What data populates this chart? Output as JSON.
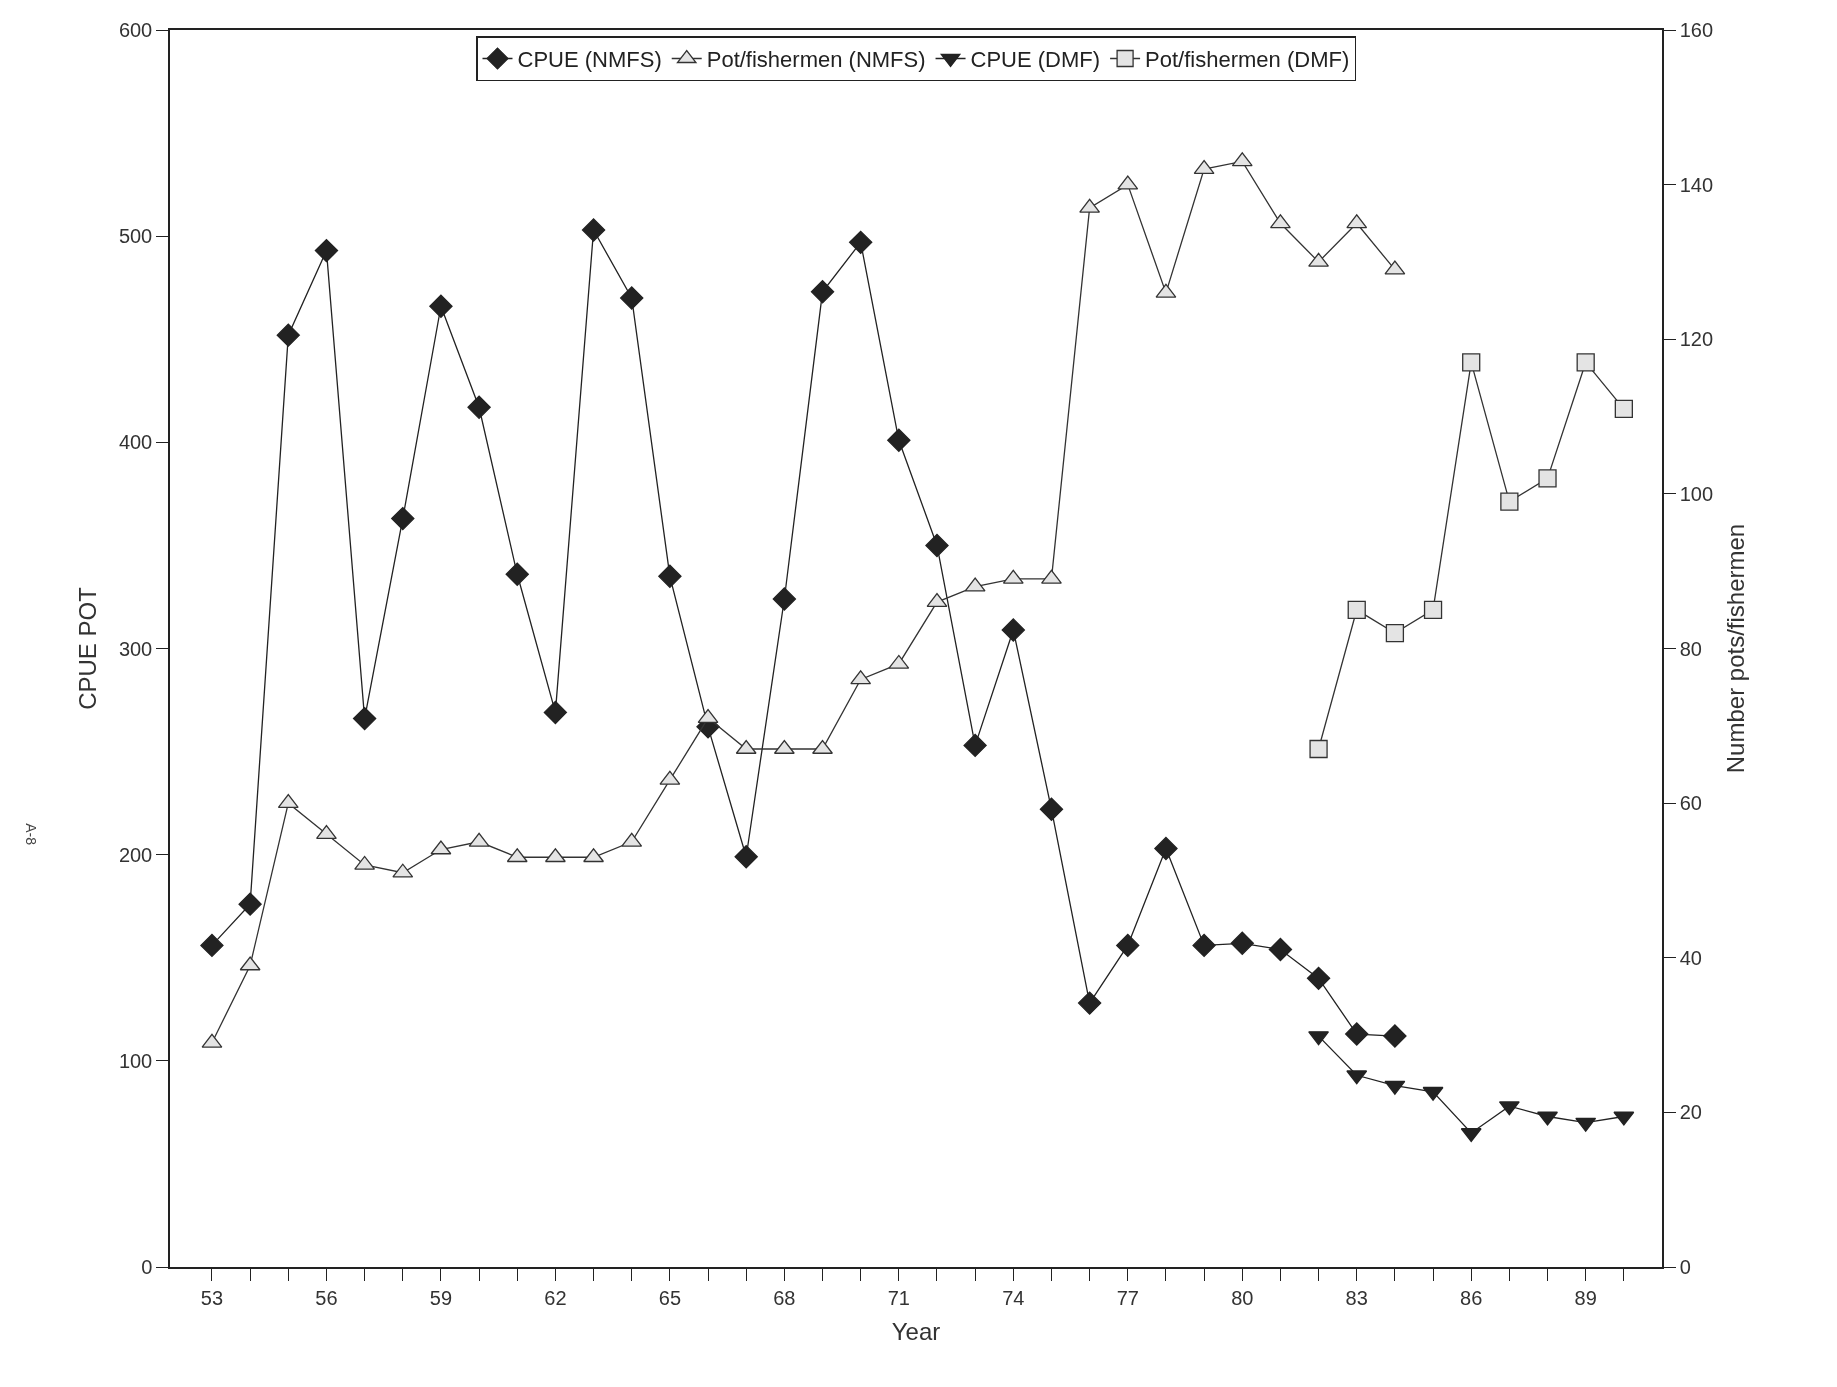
{
  "chart_data": {
    "type": "line",
    "xlabel": "Year",
    "ylabel": "CPUE POT",
    "y2label": "Number pots/fishermen",
    "annotations": [
      "A-8"
    ],
    "xlim": [
      51.9,
      91
    ],
    "xticks": [
      53,
      {
        "value": 54,
        "label": null
      },
      {
        "value": 55,
        "label": null
      },
      56,
      {
        "value": 57,
        "label": null
      },
      {
        "value": 58,
        "label": null
      },
      59,
      {
        "value": 60,
        "label": null
      },
      {
        "value": 61,
        "label": null
      },
      62,
      {
        "value": 63,
        "label": null
      },
      {
        "value": 64,
        "label": null
      },
      65,
      {
        "value": 66,
        "label": null
      },
      {
        "value": 67,
        "label": null
      },
      68,
      {
        "value": 69,
        "label": null
      },
      {
        "value": 70,
        "label": null
      },
      71,
      {
        "value": 72,
        "label": null
      },
      {
        "value": 73,
        "label": null
      },
      74,
      {
        "value": 75,
        "label": null
      },
      {
        "value": 76,
        "label": null
      },
      77,
      {
        "value": 78,
        "label": null
      },
      {
        "value": 79,
        "label": null
      },
      80,
      {
        "value": 81,
        "label": null
      },
      {
        "value": 82,
        "label": null
      },
      83,
      {
        "value": 84,
        "label": null
      },
      {
        "value": 85,
        "label": null
      },
      86,
      {
        "value": 87,
        "label": null
      },
      {
        "value": 88,
        "label": null
      },
      89,
      {
        "value": 90,
        "label": null
      }
    ],
    "ylim": [
      0,
      600
    ],
    "yticks": [
      0,
      100,
      200,
      300,
      400,
      500,
      600
    ],
    "y2lim": [
      0,
      160
    ],
    "y2ticks": [
      0,
      20,
      40,
      60,
      80,
      100,
      120,
      140,
      160
    ],
    "legend": "top",
    "series": [
      {
        "name": "CPUE (NMFS)",
        "color": "#222222",
        "marker": "diamond",
        "x": [
          53,
          54,
          55,
          56,
          57,
          58,
          59,
          60,
          61,
          62,
          63,
          64,
          65,
          66,
          67,
          68,
          69,
          70,
          71,
          72,
          73,
          74,
          75,
          76,
          77,
          78,
          79,
          80,
          81,
          82,
          83,
          84
        ],
        "values": [
          156,
          176,
          452,
          493,
          266,
          363,
          466,
          417,
          336,
          269,
          503,
          470,
          335,
          262,
          199,
          324,
          473,
          497,
          401,
          350,
          253,
          309,
          222,
          128,
          156,
          203,
          156,
          157,
          154,
          140,
          113,
          112
        ]
      },
      {
        "name": "Pot/fishermen (NMFS)",
        "color": "#333333",
        "marker": "triangle",
        "axis": "y2",
        "x": [
          53,
          54,
          55,
          56,
          57,
          58,
          59,
          60,
          61,
          62,
          63,
          64,
          65,
          66,
          67,
          68,
          69,
          70,
          71,
          72,
          73,
          74,
          75,
          76,
          77,
          78,
          79,
          80,
          81,
          82,
          83,
          84
        ],
        "values": [
          29,
          39,
          60,
          56,
          52,
          51,
          54,
          55,
          53,
          53,
          53,
          55,
          63,
          71,
          67,
          67,
          67,
          76,
          78,
          86,
          88,
          89,
          89,
          137,
          140,
          126,
          142,
          143,
          135,
          130,
          135,
          129
        ]
      },
      {
        "name": "CPUE (DMF)",
        "color": "#222222",
        "marker": "triangle-down",
        "x": [
          82,
          83,
          84,
          85,
          86,
          87,
          88,
          89,
          90
        ],
        "values": [
          112,
          93,
          88,
          85,
          65,
          78,
          73,
          70,
          73
        ]
      },
      {
        "name": "Pot/fishermen (DMF)",
        "color": "#333333",
        "marker": "square",
        "axis": "y2",
        "x": [
          82,
          83,
          84,
          85,
          86,
          87,
          88,
          89,
          90
        ],
        "values": [
          67,
          85,
          82,
          85,
          117,
          99,
          102,
          117,
          111
        ]
      }
    ]
  }
}
